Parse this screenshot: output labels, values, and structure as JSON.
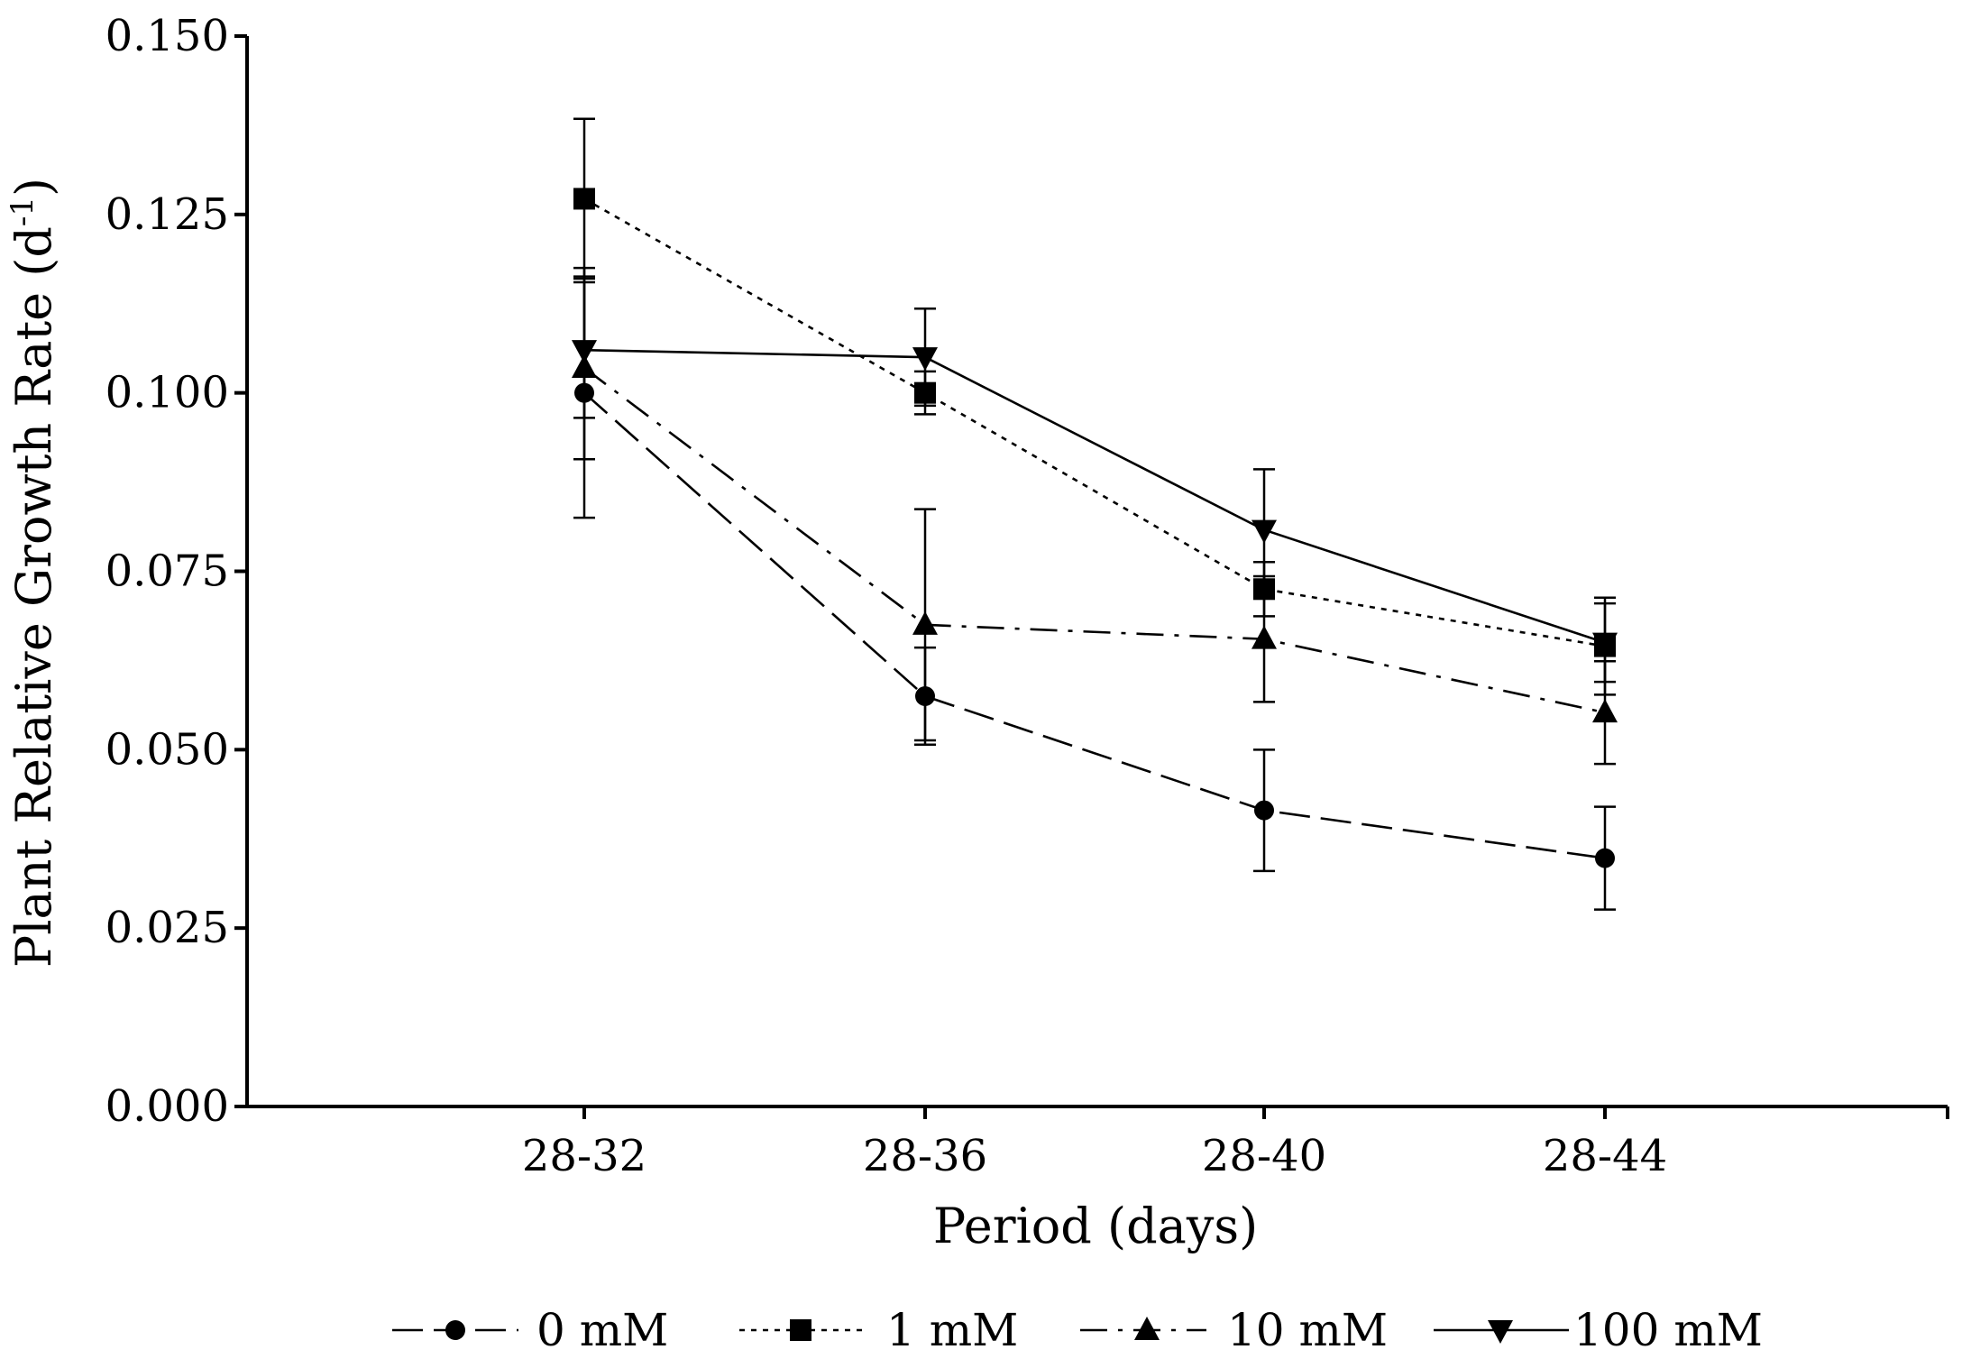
{
  "chart_data": {
    "type": "line",
    "title": "",
    "xlabel": "Period (days)",
    "ylabel": "Plant Relative Growth Rate (d",
    "ylabel_sup": "-1",
    "ylabel_close": ")",
    "categories": [
      "28-32",
      "28-36",
      "28-40",
      "28-44"
    ],
    "ylim": [
      0,
      0.15
    ],
    "yticks": [
      "0.000",
      "0.025",
      "0.050",
      "0.075",
      "0.100",
      "0.125",
      "0.150"
    ],
    "ytick_values": [
      0,
      0.025,
      0.05,
      0.075,
      0.1,
      0.125,
      0.15
    ],
    "grid": false,
    "legend_position": "bottom",
    "series": [
      {
        "name": "0 mM",
        "marker": "circle",
        "dash": "long-dash",
        "values": [
          0.1,
          0.0575,
          0.0415,
          0.0348
        ],
        "errors": [
          0.0175,
          0.0068,
          0.0085,
          0.0072
        ]
      },
      {
        "name": "1 mM",
        "marker": "square",
        "dash": "dotted",
        "values": [
          0.1272,
          0.1,
          0.0725,
          0.0645
        ],
        "errors": [
          0.0112,
          0.003,
          0.0038,
          0.0068
        ]
      },
      {
        "name": "10 mM",
        "marker": "triangle-up",
        "dash": "dash-dot",
        "values": [
          0.1035,
          0.0675,
          0.0655,
          0.0552
        ],
        "errors": [
          0.0128,
          0.0162,
          0.0088,
          0.0072
        ]
      },
      {
        "name": "100 mM",
        "marker": "triangle-down",
        "dash": "solid",
        "values": [
          0.106,
          0.105,
          0.0808,
          0.065
        ],
        "errors": [
          0.0095,
          0.0068,
          0.0085,
          0.0055
        ]
      }
    ]
  }
}
